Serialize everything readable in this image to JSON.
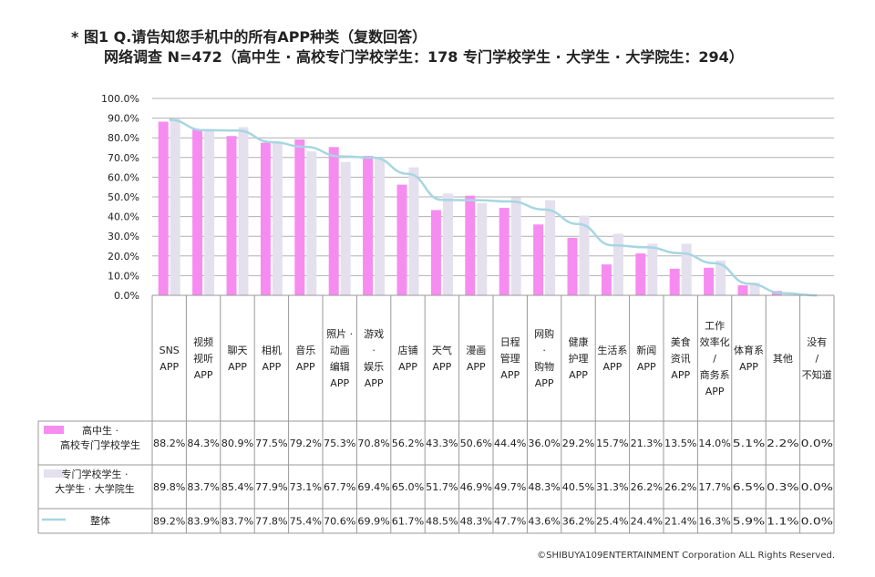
{
  "title": {
    "line1": "* 图1  Q.请告知您手机中的所有APP种类（复数回答）",
    "line2": "网络调查 N=472（高中生 · 高校专门学校学生：178   专门学校学生 · 大学生 · 大学院生：294）"
  },
  "footer": "©SHIBUYA109ENTERTAINMENT  Corporation  ALL Rights Reserved.",
  "colors": {
    "series1": "#f78cf0",
    "series2": "#e4e0ee",
    "line": "#a6d6e2",
    "grid": "#b0b0b0"
  },
  "chart_data": {
    "type": "bar",
    "ylim": [
      0,
      100
    ],
    "yticks": [
      "0.0%",
      "10.0%",
      "20.0%",
      "30.0%",
      "40.0%",
      "50.0%",
      "60.0%",
      "70.0%",
      "80.0%",
      "90.0%",
      "100.0%"
    ],
    "categories": [
      [
        "SNS",
        "APP"
      ],
      [
        "视频",
        "视听",
        "APP"
      ],
      [
        "聊天",
        "APP"
      ],
      [
        "相机",
        "APP"
      ],
      [
        "音乐",
        "APP"
      ],
      [
        "照片 ·",
        "动画",
        "编辑",
        "APP"
      ],
      [
        "游戏",
        "·",
        "娱乐",
        "APP"
      ],
      [
        "店铺",
        "APP"
      ],
      [
        "天气",
        "APP"
      ],
      [
        "漫画",
        "APP"
      ],
      [
        "日程",
        "管理",
        "APP"
      ],
      [
        "网购",
        "·",
        "购物",
        "APP"
      ],
      [
        "健康",
        "护理",
        "APP"
      ],
      [
        "生活系",
        "APP"
      ],
      [
        "新闻",
        "APP"
      ],
      [
        "美食",
        "资讯",
        "APP"
      ],
      [
        "工作",
        "效率化",
        "/",
        "商务系",
        "APP"
      ],
      [
        "体育系",
        "APP"
      ],
      [
        "其他"
      ],
      [
        "没有",
        "/",
        "不知道"
      ]
    ],
    "series": [
      {
        "name": [
          "高中生 ·",
          "高校专门学校学生"
        ],
        "type": "bar",
        "values": [
          88.2,
          84.3,
          80.9,
          77.5,
          79.2,
          75.3,
          70.8,
          56.2,
          43.3,
          50.6,
          44.4,
          36.0,
          29.2,
          15.7,
          21.3,
          13.5,
          14.0,
          5.1,
          2.2,
          0.0
        ],
        "labels": [
          "88.2%",
          "84.3%",
          "80.9%",
          "77.5%",
          "79.2%",
          "75.3%",
          "70.8%",
          "56.2%",
          "43.3%",
          "50.6%",
          "44.4%",
          "36.0%",
          "29.2%",
          "15.7%",
          "21.3%",
          "13.5%",
          "14.0%",
          "5.1%",
          "2.2%",
          "0.0%"
        ]
      },
      {
        "name": [
          "专门学校学生 ·",
          "大学生 · 大学院生"
        ],
        "type": "bar",
        "values": [
          89.8,
          83.7,
          85.4,
          77.9,
          73.1,
          67.7,
          69.4,
          65.0,
          51.7,
          46.9,
          49.7,
          48.3,
          40.5,
          31.3,
          26.2,
          26.2,
          17.7,
          6.5,
          0.3,
          0.0
        ],
        "labels": [
          "89.8%",
          "83.7%",
          "85.4%",
          "77.9%",
          "73.1%",
          "67.7%",
          "69.4%",
          "65.0%",
          "51.7%",
          "46.9%",
          "49.7%",
          "48.3%",
          "40.5%",
          "31.3%",
          "26.2%",
          "26.2%",
          "17.7%",
          "6.5%",
          "0.3%",
          "0.0%"
        ]
      },
      {
        "name": [
          "整体"
        ],
        "type": "line",
        "values": [
          89.2,
          83.9,
          83.7,
          77.8,
          75.4,
          70.6,
          69.9,
          61.7,
          48.5,
          48.3,
          47.7,
          43.6,
          36.2,
          25.4,
          24.4,
          21.4,
          16.3,
          5.9,
          1.1,
          0.0
        ],
        "labels": [
          "89.2%",
          "83.9%",
          "83.7%",
          "77.8%",
          "75.4%",
          "70.6%",
          "69.9%",
          "61.7%",
          "48.5%",
          "48.3%",
          "47.7%",
          "43.6%",
          "36.2%",
          "25.4%",
          "24.4%",
          "21.4%",
          "16.3%",
          "5.9%",
          "1.1%",
          "0.0%"
        ]
      }
    ]
  }
}
